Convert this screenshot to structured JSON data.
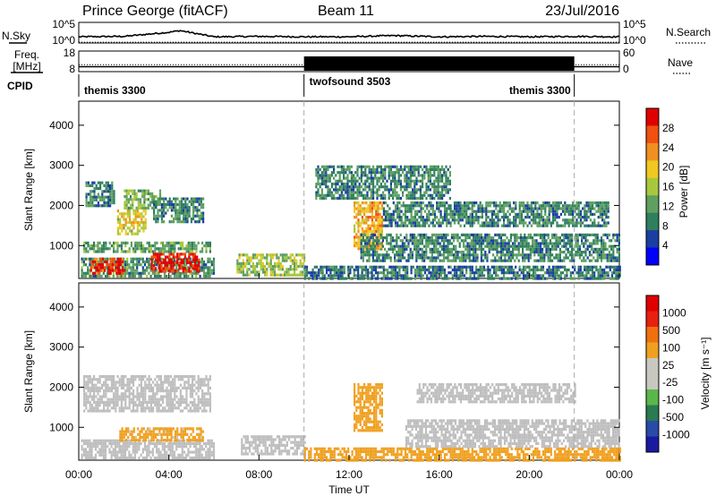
{
  "header": {
    "station": "Prince George (fitACF)",
    "beam": "Beam 11",
    "date": "23/Jul/2016"
  },
  "top_panels": {
    "nsky_label": "N.Sky",
    "nsearch_label": "N.Search",
    "nsky_ticks": [
      "10^5",
      "10^0"
    ],
    "freq_label": "Freq.",
    "freq_unit": "[MHz]",
    "freq_ticks": [
      "18",
      "8"
    ],
    "nave_label": "Nave",
    "nave_ticks": [
      "60",
      "0"
    ],
    "cpid_label": "CPID",
    "cpid_segments": [
      {
        "name": "themis 3300",
        "start_hour": 0,
        "end_hour": 10
      },
      {
        "name": "twofsound 3503",
        "start_hour": 10,
        "end_hour": 22
      },
      {
        "name": "themis 3300",
        "start_hour": 22,
        "end_hour": 24
      }
    ]
  },
  "x_axis": {
    "label": "Time UT",
    "tick_labels": [
      "00:00",
      "04:00",
      "08:00",
      "12:00",
      "16:00",
      "20:00",
      "00:00"
    ],
    "tick_hours": [
      0,
      4,
      8,
      12,
      16,
      20,
      24
    ]
  },
  "power_panel": {
    "ylabel": "Slant Range [km]",
    "yticks": [
      "4000",
      "3000",
      "2000",
      "1000"
    ],
    "colorbar_label": "Power [dB]",
    "colorbar_ticks": [
      "28",
      "24",
      "20",
      "16",
      "12",
      "8",
      "4"
    ]
  },
  "velocity_panel": {
    "ylabel": "Slant Range [km]",
    "yticks": [
      "4000",
      "3000",
      "2000",
      "1000"
    ],
    "colorbar_label": "Velocity [m s⁻¹]",
    "colorbar_ticks": [
      "1000",
      "500",
      "100",
      "25",
      "-25",
      "-100",
      "-500",
      "-1000"
    ]
  },
  "colors": {
    "power_scale": [
      "#0000ff",
      "#1a3fa0",
      "#2f7f5f",
      "#5fa060",
      "#a8c83c",
      "#f0c820",
      "#f09020",
      "#f05010",
      "#e00000"
    ],
    "velocity_scale": [
      "#1a1aa0",
      "#2a4aa8",
      "#2a7a52",
      "#5ab84a",
      "#c8c8c0",
      "#c8c8c0",
      "#f0a020",
      "#f07010",
      "#e82010",
      "#e00000"
    ],
    "ground_scatter": "#bebebe"
  },
  "chart_data": [
    {
      "type": "line",
      "title": "N.Sky / N.Search",
      "x_range_hours": [
        0,
        24
      ],
      "ylim_log": [
        0,
        5
      ],
      "series": [
        {
          "name": "N.Sky",
          "style": "solid",
          "x": [
            0,
            2,
            4,
            4.5,
            6,
            8,
            10,
            12,
            14,
            16,
            18,
            20,
            22,
            24
          ],
          "y": [
            1.5,
            1.6,
            2.6,
            3.0,
            1.5,
            1.6,
            1.5,
            1.5,
            1.8,
            1.5,
            1.6,
            1.5,
            1.6,
            1.5
          ]
        },
        {
          "name": "N.Search",
          "style": "dotted",
          "x": [
            0,
            24
          ],
          "y": [
            0.2,
            0.2
          ]
        }
      ]
    },
    {
      "type": "line",
      "title": "Freq. / Nave",
      "x_range_hours": [
        0,
        24
      ],
      "ylim_freq": [
        8,
        18
      ],
      "ylim_nave": [
        0,
        60
      ],
      "series": [
        {
          "name": "Freq.",
          "style": "solid",
          "x": [
            0,
            10,
            10,
            22,
            22,
            24
          ],
          "y": [
            10.4,
            10.4,
            10.4,
            10.4,
            10.4,
            10.4
          ]
        },
        {
          "name": "Nave",
          "style": "dotted",
          "x": [
            0,
            10,
            22,
            24
          ],
          "y": [
            20,
            20,
            20,
            20
          ]
        }
      ]
    },
    {
      "type": "heatmap",
      "title": "Power",
      "x_range_hours": [
        0,
        24
      ],
      "ylim_km": [
        180,
        4600
      ],
      "zlim_db": [
        0,
        30
      ],
      "regions": [
        {
          "t0": 0.1,
          "t1": 6.0,
          "r0": 200,
          "r1": 700,
          "db": 10
        },
        {
          "t0": 0.5,
          "t1": 2.0,
          "r0": 300,
          "r1": 700,
          "db": 27
        },
        {
          "t0": 3.2,
          "t1": 5.3,
          "r0": 380,
          "r1": 820,
          "db": 28
        },
        {
          "t0": 0.2,
          "t1": 5.8,
          "r0": 850,
          "r1": 1100,
          "db": 11
        },
        {
          "t0": 1.7,
          "t1": 3.0,
          "r0": 1300,
          "r1": 1900,
          "db": 17
        },
        {
          "t0": 2.0,
          "t1": 3.6,
          "r0": 1900,
          "r1": 2400,
          "db": 12
        },
        {
          "t0": 3.3,
          "t1": 5.5,
          "r0": 1600,
          "r1": 2200,
          "db": 9
        },
        {
          "t0": 0.3,
          "t1": 1.6,
          "r0": 2000,
          "r1": 2600,
          "db": 9
        },
        {
          "t0": 7.0,
          "t1": 10.0,
          "r0": 250,
          "r1": 800,
          "db": 14
        },
        {
          "t0": 10.0,
          "t1": 24.0,
          "r0": 200,
          "r1": 500,
          "db": 8
        },
        {
          "t0": 12.2,
          "t1": 13.5,
          "r0": 900,
          "r1": 2100,
          "db": 20
        },
        {
          "t0": 12.5,
          "t1": 24.0,
          "r0": 600,
          "r1": 1300,
          "db": 9
        },
        {
          "t0": 13.5,
          "t1": 23.5,
          "r0": 1500,
          "r1": 2100,
          "db": 9
        },
        {
          "t0": 10.5,
          "t1": 16.5,
          "r0": 2200,
          "r1": 3000,
          "db": 9
        }
      ]
    },
    {
      "type": "heatmap",
      "title": "Velocity",
      "x_range_hours": [
        0,
        24
      ],
      "ylim_km": [
        180,
        4600
      ],
      "zlim_ms": [
        -1000,
        1000
      ],
      "regions": [
        {
          "t0": 0.1,
          "t1": 6.0,
          "r0": 200,
          "r1": 700,
          "v": 0,
          "ground": true
        },
        {
          "t0": 1.8,
          "t1": 5.5,
          "r0": 700,
          "r1": 1000,
          "v": -150
        },
        {
          "t0": 0.2,
          "t1": 5.8,
          "r0": 1400,
          "r1": 2300,
          "v": 0,
          "ground": true
        },
        {
          "t0": 7.2,
          "t1": 10.0,
          "r0": 300,
          "r1": 800,
          "v": 0,
          "ground": true
        },
        {
          "t0": 10.0,
          "t1": 24.0,
          "r0": 200,
          "r1": 500,
          "v": -200
        },
        {
          "t0": 12.2,
          "t1": 13.5,
          "r0": 900,
          "r1": 2100,
          "v": -400
        },
        {
          "t0": 14.5,
          "t1": 24.0,
          "r0": 500,
          "r1": 1200,
          "v": 0,
          "ground": true
        },
        {
          "t0": 15.0,
          "t1": 22.0,
          "r0": 1600,
          "r1": 2100,
          "v": 0,
          "ground": true
        }
      ]
    }
  ]
}
